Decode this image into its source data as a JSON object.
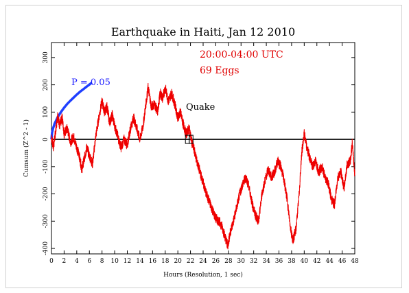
{
  "chart_data": {
    "type": "line",
    "title": "Earthquake in Haiti, Jan 12 2010",
    "xlabel": "Hours (Resolution, 1 sec)",
    "ylabel": "Cumsum (Z^2 - 1)",
    "xlim": [
      0,
      48
    ],
    "ylim": [
      -420,
      355
    ],
    "x_ticks": [
      0,
      2,
      4,
      6,
      8,
      10,
      12,
      14,
      16,
      18,
      20,
      22,
      24,
      26,
      28,
      30,
      32,
      34,
      36,
      38,
      40,
      42,
      44,
      46,
      48
    ],
    "y_ticks": [
      300,
      200,
      100,
      0,
      -100,
      -200,
      -300,
      -400
    ],
    "annotations": {
      "time_window": "20:00-04:00 UTC",
      "eggs": "69 Eggs",
      "probability": "P = 0.05",
      "event": "Quake"
    },
    "event_marker": {
      "x_start": 21.2,
      "x_end": 22.4,
      "y": 0
    },
    "colors": {
      "cumsum": "#ee0000",
      "probability": "#1f3fff",
      "baseline": "#000000"
    },
    "series": [
      {
        "values": [
          [
            0,
            10
          ],
          [
            0.3,
            -30
          ],
          [
            0.6,
            20
          ],
          [
            1.0,
            90
          ],
          [
            1.3,
            50
          ],
          [
            1.7,
            80
          ],
          [
            2.0,
            20
          ],
          [
            2.5,
            40
          ],
          [
            3.0,
            -10
          ],
          [
            3.5,
            10
          ],
          [
            4.0,
            -30
          ],
          [
            4.4,
            -60
          ],
          [
            4.8,
            -110
          ],
          [
            5.2,
            -70
          ],
          [
            5.6,
            -30
          ],
          [
            6.0,
            -60
          ],
          [
            6.5,
            -90
          ],
          [
            7.0,
            10
          ],
          [
            7.5,
            80
          ],
          [
            8.0,
            140
          ],
          [
            8.4,
            100
          ],
          [
            8.8,
            120
          ],
          [
            9.2,
            60
          ],
          [
            9.6,
            90
          ],
          [
            10.0,
            50
          ],
          [
            10.5,
            10
          ],
          [
            11.0,
            -30
          ],
          [
            11.5,
            0
          ],
          [
            12.0,
            -20
          ],
          [
            12.5,
            40
          ],
          [
            13.0,
            80
          ],
          [
            13.5,
            40
          ],
          [
            14.0,
            0
          ],
          [
            14.5,
            50
          ],
          [
            15.0,
            140
          ],
          [
            15.3,
            190
          ],
          [
            15.8,
            120
          ],
          [
            16.3,
            130
          ],
          [
            16.8,
            100
          ],
          [
            17.2,
            170
          ],
          [
            17.6,
            150
          ],
          [
            18.0,
            190
          ],
          [
            18.5,
            140
          ],
          [
            19.0,
            170
          ],
          [
            19.5,
            130
          ],
          [
            20.0,
            80
          ],
          [
            20.4,
            100
          ],
          [
            20.8,
            60
          ],
          [
            21.3,
            20
          ],
          [
            21.8,
            40
          ],
          [
            22.2,
            -10
          ],
          [
            22.6,
            -40
          ],
          [
            23.0,
            -80
          ],
          [
            23.5,
            -120
          ],
          [
            24.0,
            -160
          ],
          [
            24.5,
            -200
          ],
          [
            25.0,
            -230
          ],
          [
            25.5,
            -260
          ],
          [
            26.0,
            -290
          ],
          [
            26.5,
            -300
          ],
          [
            27.0,
            -320
          ],
          [
            27.5,
            -360
          ],
          [
            27.9,
            -390
          ],
          [
            28.3,
            -340
          ],
          [
            28.8,
            -300
          ],
          [
            29.3,
            -250
          ],
          [
            29.8,
            -200
          ],
          [
            30.3,
            -160
          ],
          [
            30.8,
            -140
          ],
          [
            31.3,
            -180
          ],
          [
            31.8,
            -240
          ],
          [
            32.3,
            -280
          ],
          [
            32.8,
            -300
          ],
          [
            33.3,
            -200
          ],
          [
            33.8,
            -150
          ],
          [
            34.3,
            -110
          ],
          [
            34.8,
            -140
          ],
          [
            35.3,
            -120
          ],
          [
            35.8,
            -80
          ],
          [
            36.3,
            -100
          ],
          [
            36.8,
            -150
          ],
          [
            37.3,
            -220
          ],
          [
            37.8,
            -320
          ],
          [
            38.2,
            -370
          ],
          [
            38.7,
            -330
          ],
          [
            39.2,
            -200
          ],
          [
            39.6,
            -50
          ],
          [
            40.0,
            20
          ],
          [
            40.4,
            -30
          ],
          [
            40.8,
            -60
          ],
          [
            41.3,
            -100
          ],
          [
            41.8,
            -80
          ],
          [
            42.3,
            -120
          ],
          [
            42.8,
            -100
          ],
          [
            43.3,
            -140
          ],
          [
            43.8,
            -160
          ],
          [
            44.3,
            -220
          ],
          [
            44.8,
            -240
          ],
          [
            45.3,
            -140
          ],
          [
            45.8,
            -120
          ],
          [
            46.3,
            -180
          ],
          [
            46.8,
            -90
          ],
          [
            47.3,
            -80
          ],
          [
            47.6,
            -10
          ],
          [
            48.0,
            -130
          ]
        ]
      },
      {
        "values": [
          [
            0,
            0
          ],
          [
            0.1,
            25
          ],
          [
            0.25,
            40
          ],
          [
            0.5,
            58
          ],
          [
            0.75,
            70
          ],
          [
            1.0,
            82
          ],
          [
            1.5,
            100
          ],
          [
            2.0,
            116
          ],
          [
            2.5,
            130
          ],
          [
            3.0,
            142
          ],
          [
            3.5,
            153
          ],
          [
            4.0,
            164
          ],
          [
            4.5,
            174
          ],
          [
            5.0,
            183
          ],
          [
            5.5,
            192
          ],
          [
            6.0,
            201
          ],
          [
            6.4,
            208
          ]
        ]
      }
    ]
  }
}
